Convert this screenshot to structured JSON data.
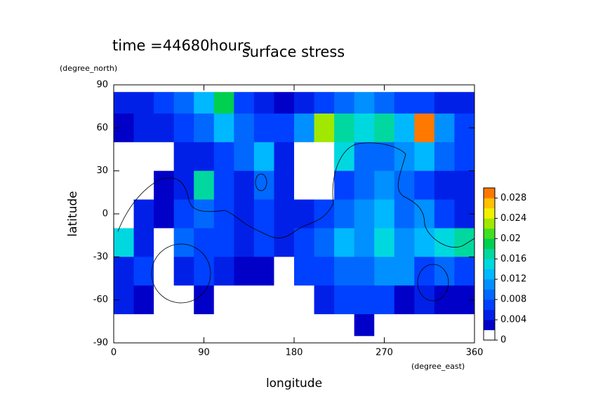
{
  "chart_data": {
    "type": "contour",
    "title": "surface stress",
    "annotation": "time =44680hours",
    "x_label": "longitude",
    "x_unit": "(degree_east)",
    "y_label": "latitude",
    "y_unit": "(degree_north)",
    "xlim": [
      0,
      360
    ],
    "xticks": [
      0,
      90,
      180,
      270,
      360
    ],
    "ylim": [
      -90,
      90
    ],
    "yticks": [
      90,
      60,
      30,
      0,
      -30,
      -60,
      -90
    ],
    "x": [
      10,
      30,
      50,
      70,
      90,
      110,
      130,
      150,
      170,
      190,
      210,
      230,
      250,
      270,
      290,
      310,
      330,
      350
    ],
    "y": [
      80,
      60,
      40,
      20,
      0,
      -20,
      -40,
      -60,
      -80
    ],
    "z": [
      [
        0.004,
        0.005,
        0.006,
        0.008,
        0.012,
        0.018,
        0.006,
        0.004,
        0.003,
        0.004,
        0.006,
        0.008,
        0.01,
        0.008,
        0.006,
        0.006,
        0.005,
        0.004
      ],
      [
        0.003,
        0.004,
        0.004,
        0.006,
        0.008,
        0.012,
        0.008,
        0.006,
        0.006,
        0.01,
        0.022,
        0.016,
        0.014,
        0.016,
        0.012,
        0.028,
        0.01,
        0.006
      ],
      [
        0,
        0,
        0,
        0.004,
        0.004,
        0.006,
        0.008,
        0.012,
        0.004,
        0,
        0,
        0.014,
        0.008,
        0.008,
        0.01,
        0.012,
        0.008,
        0.006
      ],
      [
        0,
        0,
        0.002,
        0.004,
        0.016,
        0.006,
        0.004,
        0.008,
        0.004,
        0,
        0,
        0.006,
        0.008,
        0.01,
        0.008,
        0.006,
        0.004,
        0.004
      ],
      [
        0,
        0.004,
        0.003,
        0.006,
        0.008,
        0.006,
        0.004,
        0.006,
        0.004,
        0.004,
        0.006,
        0.008,
        0.01,
        0.012,
        0.008,
        0.01,
        0.006,
        0.004
      ],
      [
        0.014,
        0.004,
        0,
        0.008,
        0.006,
        0.006,
        0.004,
        0.006,
        0.004,
        0.006,
        0.008,
        0.012,
        0.01,
        0.014,
        0.01,
        0.012,
        0.014,
        0.016
      ],
      [
        0.004,
        0.006,
        0,
        0.004,
        0.006,
        0.004,
        0.003,
        0.002,
        0,
        0.006,
        0.006,
        0.008,
        0.008,
        0.01,
        0.01,
        0.006,
        0.008,
        0.006
      ],
      [
        0.004,
        0.002,
        0,
        0,
        0.003,
        0,
        0,
        0,
        0,
        0,
        0.004,
        0.006,
        0.006,
        0.006,
        0.003,
        0.004,
        0.002,
        0.002
      ],
      [
        0,
        0,
        0,
        0,
        0,
        0,
        0,
        0,
        0,
        0,
        0,
        0,
        0.003,
        0,
        0,
        0,
        0,
        0
      ]
    ],
    "colorbar_lim": [
      0,
      0.03
    ],
    "colorbar_ticks": [
      0,
      0.004,
      0.008,
      0.012,
      0.016,
      0.02,
      0.024,
      0.028
    ],
    "colors": [
      "#ffffff",
      "#0000c8",
      "#0020e8",
      "#0040ff",
      "#0068ff",
      "#0090ff",
      "#00b8ff",
      "#00d8e0",
      "#00d8a0",
      "#00d050",
      "#40e020",
      "#a0e800",
      "#f0f000",
      "#ffc000",
      "#ff7800"
    ]
  }
}
